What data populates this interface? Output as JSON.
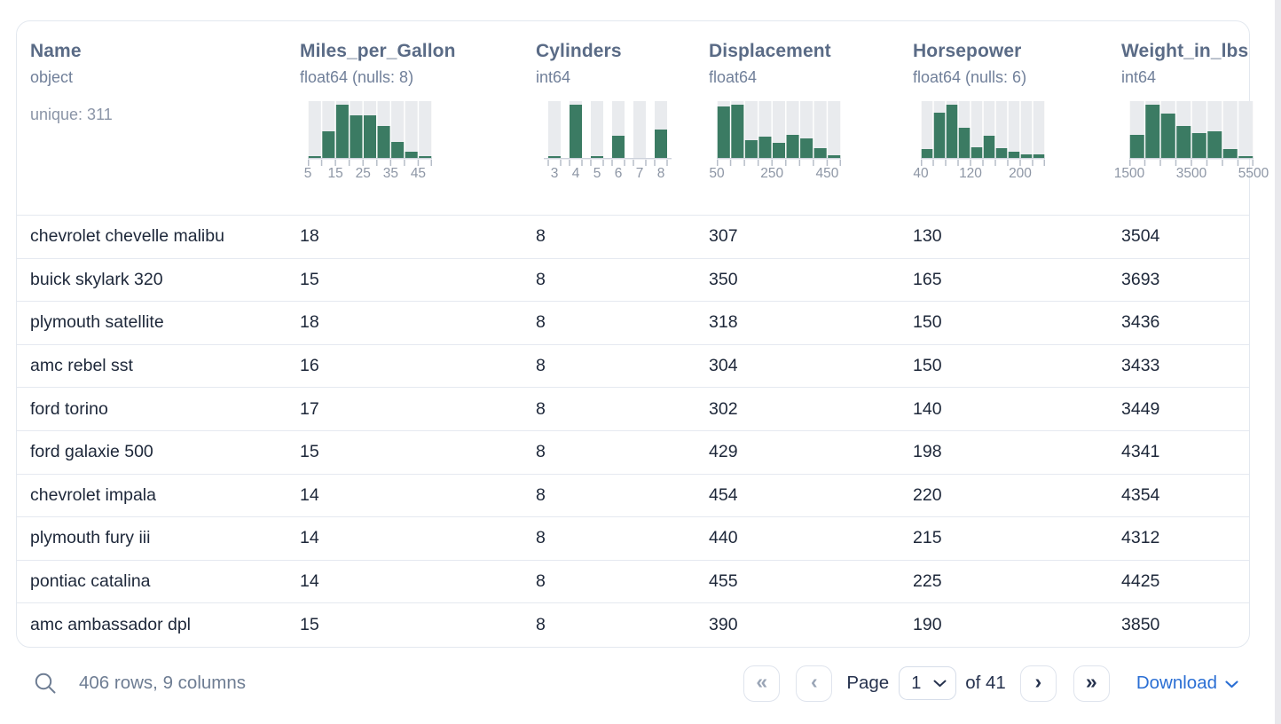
{
  "table": {
    "columns": [
      {
        "name": "Name",
        "dtype": "object",
        "note": "unique: 311"
      },
      {
        "name": "Miles_per_Gallon",
        "dtype": "float64 (nulls: 8)",
        "hist": {
          "kind": "continuous",
          "bin_start": 5,
          "bin_size": 5,
          "counts_rel": [
            0.03,
            0.5,
            1,
            0.8,
            0.8,
            0.6,
            0.3,
            0.12,
            0.03
          ],
          "tick_labels": [
            [
              0,
              "5"
            ],
            [
              2,
              "15"
            ],
            [
              4,
              "25"
            ],
            [
              6,
              "35"
            ],
            [
              8,
              "45"
            ]
          ]
        }
      },
      {
        "name": "Cylinders",
        "dtype": "int64",
        "hist": {
          "kind": "discrete",
          "categories": [
            "3",
            "4",
            "5",
            "6",
            "7",
            "8"
          ],
          "counts_rel": [
            0.04,
            1,
            0.03,
            0.41,
            0,
            0.53
          ]
        }
      },
      {
        "name": "Displacement",
        "dtype": "float64",
        "hist": {
          "kind": "continuous",
          "bin_start": 50,
          "bin_size": 50,
          "counts_rel": [
            0.96,
            1,
            0.33,
            0.4,
            0.28,
            0.44,
            0.37,
            0.18,
            0.05
          ],
          "tick_labels": [
            [
              0,
              "50"
            ],
            [
              4,
              "250"
            ],
            [
              8,
              "450"
            ]
          ]
        }
      },
      {
        "name": "Horsepower",
        "dtype": "float64 (nulls: 6)",
        "hist": {
          "kind": "continuous",
          "bin_start": 40,
          "bin_size": 20,
          "counts_rel": [
            0.17,
            0.85,
            1,
            0.57,
            0.2,
            0.42,
            0.18,
            0.11,
            0.07,
            0.06
          ],
          "tick_labels": [
            [
              0,
              "40"
            ],
            [
              4,
              "120"
            ],
            [
              8,
              "200"
            ]
          ]
        }
      },
      {
        "name": "Weight_in_lbs",
        "dtype": "int64",
        "hist": {
          "kind": "continuous",
          "bin_start": 1500,
          "bin_size": 500,
          "counts_rel": [
            0.43,
            1,
            0.83,
            0.6,
            0.46,
            0.5,
            0.17,
            0.04
          ],
          "tick_labels": [
            [
              0,
              "1500"
            ],
            [
              4,
              "3500"
            ],
            [
              8,
              "5500"
            ]
          ]
        }
      }
    ],
    "rows": [
      [
        "chevrolet chevelle malibu",
        "18",
        "8",
        "307",
        "130",
        "3504"
      ],
      [
        "buick skylark 320",
        "15",
        "8",
        "350",
        "165",
        "3693"
      ],
      [
        "plymouth satellite",
        "18",
        "8",
        "318",
        "150",
        "3436"
      ],
      [
        "amc rebel sst",
        "16",
        "8",
        "304",
        "150",
        "3433"
      ],
      [
        "ford torino",
        "17",
        "8",
        "302",
        "140",
        "3449"
      ],
      [
        "ford galaxie 500",
        "15",
        "8",
        "429",
        "198",
        "4341"
      ],
      [
        "chevrolet impala",
        "14",
        "8",
        "454",
        "220",
        "4354"
      ],
      [
        "plymouth fury iii",
        "14",
        "8",
        "440",
        "215",
        "4312"
      ],
      [
        "pontiac catalina",
        "14",
        "8",
        "455",
        "225",
        "4425"
      ],
      [
        "amc ambassador dpl",
        "15",
        "8",
        "390",
        "190",
        "3850"
      ]
    ]
  },
  "footer": {
    "summary": "406 rows, 9 columns",
    "pagination": {
      "first": "«",
      "prev": "‹",
      "page_label": "Page",
      "page_value": "1",
      "total_label": "of 41",
      "next": "›",
      "last": "»"
    },
    "download_label": "Download"
  },
  "colors": {
    "histogram_bar": "#3b7b63",
    "histogram_bg_bar": "#e9ebee",
    "axis_line": "#c6ccd6",
    "tick": "#b7bec9",
    "tick_label": "#8d96a5",
    "link_blue": "#2b6fd4",
    "header_text": "#5a6b86",
    "cell_text": "#1d2739"
  }
}
